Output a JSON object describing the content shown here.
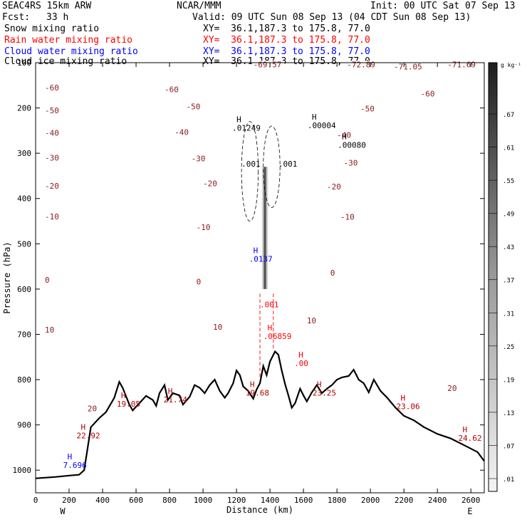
{
  "header": {
    "model": "SEAC4RS 15km ARW",
    "org": "NCAR/MMM",
    "init": "Init: 00 UTC Sat 07 Sep 13",
    "fcst_label": "Fcst:",
    "fcst_value": "33 h",
    "valid": "Valid: 09 UTC Sun 08 Sep 13 (04 CDT Sun 08 Sep 13)",
    "fields": [
      {
        "name": "Snow mixing ratio",
        "color": "#000000",
        "xy": "XY=  36.1,187.3 to 175.8, 77.0"
      },
      {
        "name": "Rain water mixing ratio",
        "color": "#ff0000",
        "xy": "XY=  36.1,187.3 to 175.8, 77.0"
      },
      {
        "name": "Cloud water mixing ratio",
        "color": "#0000ff",
        "xy": "XY=  36.1,187.3 to 175.8, 77.0"
      },
      {
        "name": "Cloud ice mixing ratio",
        "color": "#000000",
        "xy": "XY=  36.1,187.3 to 175.8, 77.0"
      }
    ]
  },
  "colorbar": {
    "unit": "g kg⁻¹",
    "labels": [
      ".67",
      ".61",
      ".55",
      ".49",
      ".43",
      ".37",
      ".31",
      ".25",
      ".19",
      ".13",
      ".07",
      ".01"
    ]
  },
  "chart_data": {
    "type": "cross-section",
    "xlabel": "Distance (km)",
    "ylabel": "Pressure (hPa)",
    "xlim": [
      0,
      2680
    ],
    "ylim": [
      1050,
      100
    ],
    "x_ticks": [
      0,
      200,
      400,
      600,
      800,
      1000,
      1200,
      1400,
      1600,
      1800,
      2000,
      2200,
      2400,
      2600
    ],
    "y_ticks": [
      200,
      300,
      400,
      500,
      600,
      700,
      800,
      900,
      1000
    ],
    "y_top_label": "100",
    "end_labels": {
      "left": "W",
      "right": "E"
    },
    "temperature_contours": [
      {
        "p": 130,
        "left": null
      },
      {
        "p": 155,
        "left": "-60"
      },
      {
        "p": 180,
        "left": null
      },
      {
        "p": 205,
        "left": "-50"
      },
      {
        "p": 230,
        "left": null
      },
      {
        "p": 255,
        "left": "-40"
      },
      {
        "p": 280,
        "left": null
      },
      {
        "p": 310,
        "left": "-30"
      },
      {
        "p": 340,
        "left": null
      },
      {
        "p": 372,
        "left": "-20"
      },
      {
        "p": 405,
        "left": null
      },
      {
        "p": 440,
        "left": "-10"
      },
      {
        "p": 475,
        "left": null
      },
      {
        "p": 512,
        "left": null
      },
      {
        "p": 548,
        "left": null
      },
      {
        "p": 580,
        "left": "0",
        "bold": true
      },
      {
        "p": 618,
        "left": null
      },
      {
        "p": 655,
        "left": null
      },
      {
        "p": 690,
        "left": "10"
      },
      {
        "p": 725,
        "left": null
      },
      {
        "p": 760,
        "left": null
      }
    ],
    "contour_labels": [
      {
        "text": "-69.57",
        "x": 1300,
        "p": 110
      },
      {
        "text": "-72.89",
        "x": 1860,
        "p": 110
      },
      {
        "text": "-71.05",
        "x": 2140,
        "p": 115
      },
      {
        "text": "-71.69",
        "x": 2460,
        "p": 110
      },
      {
        "text": "-60",
        "x": 770,
        "p": 165
      },
      {
        "text": "-60",
        "x": 2300,
        "p": 175
      },
      {
        "text": "-50",
        "x": 900,
        "p": 203
      },
      {
        "text": "-50",
        "x": 1940,
        "p": 208
      },
      {
        "text": "-40",
        "x": 830,
        "p": 260
      },
      {
        "text": "-40",
        "x": 1800,
        "p": 266
      },
      {
        "text": "-30",
        "x": 930,
        "p": 318
      },
      {
        "text": "-30",
        "x": 1840,
        "p": 327
      },
      {
        "text": "-20",
        "x": 1000,
        "p": 373
      },
      {
        "text": "-20",
        "x": 1740,
        "p": 380
      },
      {
        "text": "-10",
        "x": 960,
        "p": 470
      },
      {
        "text": "-10",
        "x": 1820,
        "p": 447
      },
      {
        "text": "0",
        "x": 960,
        "p": 590
      },
      {
        "text": "0",
        "x": 1760,
        "p": 570
      },
      {
        "text": "10",
        "x": 1060,
        "p": 690
      },
      {
        "text": "10",
        "x": 1620,
        "p": 676
      },
      {
        "text": "20",
        "x": 310,
        "p": 870
      },
      {
        "text": "20",
        "x": 2460,
        "p": 825
      }
    ],
    "terrain": [
      [
        0,
        1018
      ],
      [
        120,
        1015
      ],
      [
        200,
        1012
      ],
      [
        260,
        1010
      ],
      [
        290,
        1000
      ],
      [
        330,
        905
      ],
      [
        380,
        885
      ],
      [
        420,
        872
      ],
      [
        470,
        840
      ],
      [
        500,
        805
      ],
      [
        520,
        818
      ],
      [
        560,
        855
      ],
      [
        580,
        868
      ],
      [
        620,
        852
      ],
      [
        660,
        836
      ],
      [
        700,
        845
      ],
      [
        720,
        858
      ],
      [
        740,
        830
      ],
      [
        770,
        812
      ],
      [
        790,
        845
      ],
      [
        820,
        830
      ],
      [
        860,
        835
      ],
      [
        880,
        855
      ],
      [
        920,
        838
      ],
      [
        950,
        812
      ],
      [
        980,
        818
      ],
      [
        1010,
        830
      ],
      [
        1040,
        812
      ],
      [
        1070,
        800
      ],
      [
        1100,
        825
      ],
      [
        1130,
        840
      ],
      [
        1150,
        830
      ],
      [
        1180,
        808
      ],
      [
        1200,
        780
      ],
      [
        1220,
        790
      ],
      [
        1240,
        815
      ],
      [
        1270,
        825
      ],
      [
        1300,
        842
      ],
      [
        1320,
        822
      ],
      [
        1340,
        808
      ],
      [
        1360,
        770
      ],
      [
        1380,
        790
      ],
      [
        1400,
        760
      ],
      [
        1430,
        738
      ],
      [
        1450,
        745
      ],
      [
        1470,
        780
      ],
      [
        1490,
        810
      ],
      [
        1510,
        835
      ],
      [
        1530,
        862
      ],
      [
        1550,
        852
      ],
      [
        1580,
        820
      ],
      [
        1600,
        835
      ],
      [
        1620,
        848
      ],
      [
        1650,
        828
      ],
      [
        1680,
        812
      ],
      [
        1710,
        830
      ],
      [
        1740,
        820
      ],
      [
        1770,
        812
      ],
      [
        1800,
        800
      ],
      [
        1830,
        795
      ],
      [
        1870,
        792
      ],
      [
        1900,
        778
      ],
      [
        1930,
        800
      ],
      [
        1960,
        808
      ],
      [
        1990,
        828
      ],
      [
        2020,
        800
      ],
      [
        2060,
        825
      ],
      [
        2100,
        840
      ],
      [
        2150,
        862
      ],
      [
        2200,
        880
      ],
      [
        2260,
        890
      ],
      [
        2320,
        905
      ],
      [
        2400,
        920
      ],
      [
        2480,
        930
      ],
      [
        2560,
        945
      ],
      [
        2640,
        960
      ],
      [
        2680,
        980
      ]
    ],
    "maxima": [
      {
        "label": "H",
        "value": "22.92",
        "x": 270,
        "p": 930,
        "color": "#b40000"
      },
      {
        "label": "H",
        "value": "19.05",
        "x": 510,
        "p": 860,
        "color": "#b40000"
      },
      {
        "label": "H",
        "value": "21.74",
        "x": 790,
        "p": 850,
        "color": "#b40000"
      },
      {
        "label": "H",
        "value": "19.68",
        "x": 1280,
        "p": 835,
        "color": "#b40000"
      },
      {
        "label": "H",
        "value": "23.25",
        "x": 1680,
        "p": 835,
        "color": "#b40000"
      },
      {
        "label": "H",
        "value": "23.06",
        "x": 2180,
        "p": 865,
        "color": "#b40000"
      },
      {
        "label": "H",
        "value": "24.62",
        "x": 2550,
        "p": 935,
        "color": "#b40000"
      },
      {
        "label": "H",
        "value": "7.696",
        "x": 190,
        "p": 995,
        "color": "#0000ff"
      },
      {
        "label": "H",
        "value": ".01249",
        "x": 1200,
        "p": 250,
        "color": "#000000"
      },
      {
        "label": "H",
        "value": ".00004",
        "x": 1650,
        "p": 245,
        "color": "#000000"
      },
      {
        "label": "H",
        "value": ".00080",
        "x": 1830,
        "p": 288,
        "color": "#000000"
      },
      {
        "label": "H",
        "value": ".0137",
        "x": 1300,
        "p": 540,
        "color": "#0000ff"
      },
      {
        "label": "H",
        "value": ".06859",
        "x": 1385,
        "p": 710,
        "color": "#ff0000"
      },
      {
        "label": "H",
        "value": ".00",
        "x": 1570,
        "p": 770,
        "color": "#ff0000"
      }
    ],
    "ice_labels": [
      {
        "text": ".001",
        "x": 1230,
        "p": 330
      },
      {
        "text": ".001",
        "x": 1450,
        "p": 330
      }
    ],
    "rain_labels": [
      {
        "text": ".001",
        "x": 1340,
        "p": 640
      }
    ]
  }
}
